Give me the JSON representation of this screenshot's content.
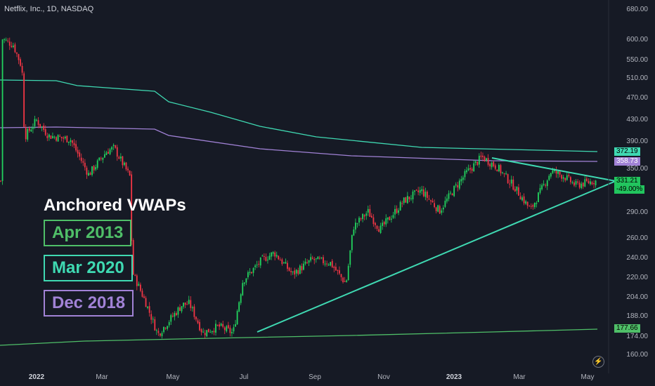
{
  "header": {
    "symbol": "Netflix, Inc., 1D, NASDAQ"
  },
  "overlay": {
    "title": "Anchored VWAPs",
    "anchors": [
      {
        "label": "Apr 2013",
        "color": "#4fbf68"
      },
      {
        "label": "Mar 2020",
        "color": "#3fd9b2"
      },
      {
        "label": "Dec 2018",
        "color": "#a182d6"
      }
    ]
  },
  "price_axis": {
    "labels": [
      "680.00",
      "600.00",
      "550.00",
      "510.00",
      "470.00",
      "430.00",
      "390.00",
      "350.00",
      "290.00",
      "260.00",
      "240.00",
      "220.00",
      "204.00",
      "188.00",
      "174.00",
      "160.00"
    ]
  },
  "tags": {
    "vwap_mar2020": "372.19",
    "vwap_dec2018": "358.73",
    "last_price": "331.21",
    "change": "-49.00%",
    "vwap_apr2013": "177.66"
  },
  "time_axis": [
    "2022",
    "Mar",
    "May",
    "Jul",
    "Sep",
    "Nov",
    "2023",
    "Mar",
    "May"
  ],
  "chart_data": {
    "type": "candlestick",
    "title": "Netflix, Inc., 1D, NASDAQ",
    "x_range": [
      "2022-01",
      "2023-05"
    ],
    "y_scale": "log",
    "ylim": [
      155,
      700
    ],
    "close_path": [
      [
        "2022-01-03",
        600
      ],
      [
        "2022-01-12",
        585
      ],
      [
        "2022-01-18",
        540
      ],
      [
        "2022-01-20",
        508
      ],
      [
        "2022-01-21",
        397
      ],
      [
        "2022-01-31",
        427
      ],
      [
        "2022-02-10",
        400
      ],
      [
        "2022-02-28",
        394
      ],
      [
        "2022-03-15",
        340
      ],
      [
        "2022-03-30",
        375
      ],
      [
        "2022-04-05",
        380
      ],
      [
        "2022-04-18",
        337
      ],
      [
        "2022-04-20",
        226
      ],
      [
        "2022-05-01",
        199
      ],
      [
        "2022-05-11",
        174
      ],
      [
        "2022-05-31",
        197
      ],
      [
        "2022-06-06",
        198
      ],
      [
        "2022-06-17",
        175
      ],
      [
        "2022-06-30",
        180
      ],
      [
        "2022-07-12",
        175
      ],
      [
        "2022-07-20",
        218
      ],
      [
        "2022-08-05",
        238
      ],
      [
        "2022-08-15",
        245
      ],
      [
        "2022-08-30",
        224
      ],
      [
        "2022-09-15",
        238
      ],
      [
        "2022-09-30",
        235
      ],
      [
        "2022-10-13",
        215
      ],
      [
        "2022-10-19",
        273
      ],
      [
        "2022-10-31",
        291
      ],
      [
        "2022-11-10",
        270
      ],
      [
        "2022-11-30",
        305
      ],
      [
        "2022-12-14",
        318
      ],
      [
        "2022-12-29",
        292
      ],
      [
        "2023-01-10",
        320
      ],
      [
        "2023-01-20",
        342
      ],
      [
        "2023-02-02",
        366
      ],
      [
        "2023-02-15",
        350
      ],
      [
        "2023-03-01",
        322
      ],
      [
        "2023-03-14",
        293
      ],
      [
        "2023-03-31",
        345
      ],
      [
        "2023-04-10",
        338
      ],
      [
        "2023-04-20",
        325
      ],
      [
        "2023-05-05",
        331
      ]
    ],
    "lines": [
      {
        "name": "Apr 2013",
        "last": 177.66
      },
      {
        "name": "Mar 2020",
        "last": 372.19
      },
      {
        "name": "Dec 2018",
        "last": 358.73
      }
    ],
    "last_close": 331.21,
    "change_pct": -49.0
  }
}
